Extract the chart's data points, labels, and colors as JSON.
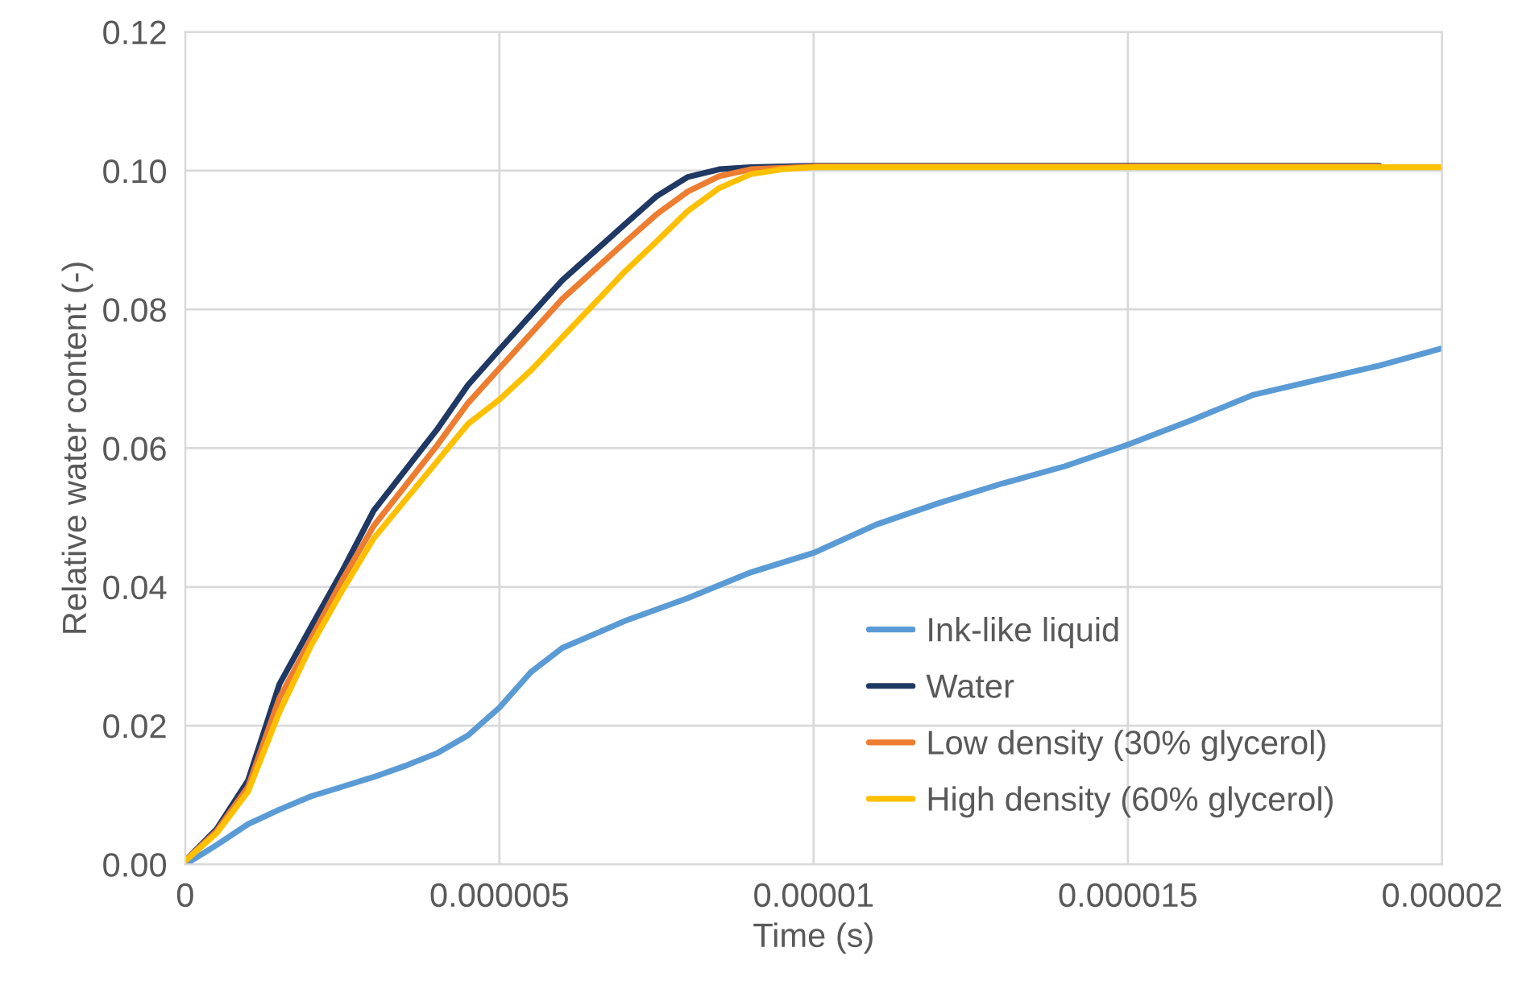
{
  "chart_data": {
    "type": "line",
    "xlabel": "Time (s)",
    "ylabel": "Relative water content (-)",
    "xlim": [
      0,
      2e-05
    ],
    "ylim": [
      0,
      0.12
    ],
    "xticks": [
      0,
      {
        "value": 5e-06,
        "label": "0.000005"
      },
      {
        "value": 1e-05,
        "label": "0.00001"
      },
      {
        "value": 1.5e-05,
        "label": "0.000015"
      },
      {
        "value": 2e-05,
        "label": "0.00002"
      }
    ],
    "yticks": [
      {
        "value": 0,
        "label": "0.00"
      },
      {
        "value": 0.02,
        "label": "0.02"
      },
      {
        "value": 0.04,
        "label": "0.04"
      },
      {
        "value": 0.06,
        "label": "0.06"
      },
      {
        "value": 0.08,
        "label": "0.08"
      },
      {
        "value": 0.1,
        "label": "0.10"
      },
      {
        "value": 0.12,
        "label": "0.12"
      }
    ],
    "grid": true,
    "legend": "bottom right",
    "marker": "none",
    "line_style": "solid",
    "series": [
      {
        "name": "Ink-like liquid",
        "color": "#5b9bd5",
        "x": [
          0,
          5e-07,
          1e-06,
          1.5e-06,
          2e-06,
          2.5e-06,
          3e-06,
          3.5e-06,
          4e-06,
          4.5e-06,
          5e-06,
          5.5e-06,
          6e-06,
          7e-06,
          8e-06,
          9e-06,
          1e-05,
          1.1e-05,
          1.2e-05,
          1.3e-05,
          1.4e-05,
          1.5e-05,
          1.6e-05,
          1.7e-05,
          1.8e-05,
          1.9e-05,
          2e-05
        ],
        "values": [
          0,
          0.0028,
          0.0058,
          0.0079,
          0.0098,
          0.0112,
          0.0126,
          0.0142,
          0.016,
          0.0186,
          0.0226,
          0.0277,
          0.0312,
          0.0351,
          0.0384,
          0.0421,
          0.0449,
          0.049,
          0.0521,
          0.0549,
          0.0574,
          0.0605,
          0.064,
          0.0677,
          0.0698,
          0.0719,
          0.0744
        ]
      },
      {
        "name": "Water",
        "color": "#203864",
        "x": [
          0,
          5e-07,
          1e-06,
          1.5e-06,
          2e-06,
          2.5e-06,
          3e-06,
          4e-06,
          4.5e-06,
          5e-06,
          6e-06,
          7e-06,
          7.5e-06,
          8e-06,
          8.5e-06,
          9e-06,
          1e-05,
          1.9e-05
        ],
        "values": [
          0.0005,
          0.0051,
          0.0121,
          0.026,
          0.0342,
          0.0423,
          0.051,
          0.0626,
          0.0691,
          0.0742,
          0.0842,
          0.0923,
          0.0963,
          0.0991,
          0.1002,
          0.1005,
          0.1007,
          0.1007
        ]
      },
      {
        "name": "Low density (30% glycerol)",
        "color": "#ed7d31",
        "x": [
          0,
          5e-07,
          1e-06,
          1.5e-06,
          2e-06,
          2.5e-06,
          3e-06,
          4e-06,
          4.5e-06,
          5e-06,
          6e-06,
          7e-06,
          7.5e-06,
          8e-06,
          8.5e-06,
          9e-06,
          1e-05,
          1.9e-05
        ],
        "values": [
          0.0005,
          0.0048,
          0.0112,
          0.024,
          0.0325,
          0.041,
          0.0488,
          0.0603,
          0.0665,
          0.0715,
          0.0815,
          0.0897,
          0.0937,
          0.097,
          0.0992,
          0.1002,
          0.1006,
          0.1006
        ]
      },
      {
        "name": "High density (60% glycerol)",
        "color": "#ffc000",
        "x": [
          0,
          5e-07,
          1e-06,
          1.5e-06,
          2e-06,
          2.5e-06,
          3e-06,
          4e-06,
          4.5e-06,
          5e-06,
          5.5e-06,
          6e-06,
          7e-06,
          7.5e-06,
          8e-06,
          8.5e-06,
          9e-06,
          9.5e-06,
          1e-05,
          2e-05
        ],
        "values": [
          0.0005,
          0.0045,
          0.0105,
          0.022,
          0.0315,
          0.0395,
          0.047,
          0.058,
          0.0635,
          0.067,
          0.0712,
          0.076,
          0.0855,
          0.0898,
          0.0942,
          0.0975,
          0.0995,
          0.1002,
          0.1005,
          0.1005
        ]
      }
    ]
  }
}
